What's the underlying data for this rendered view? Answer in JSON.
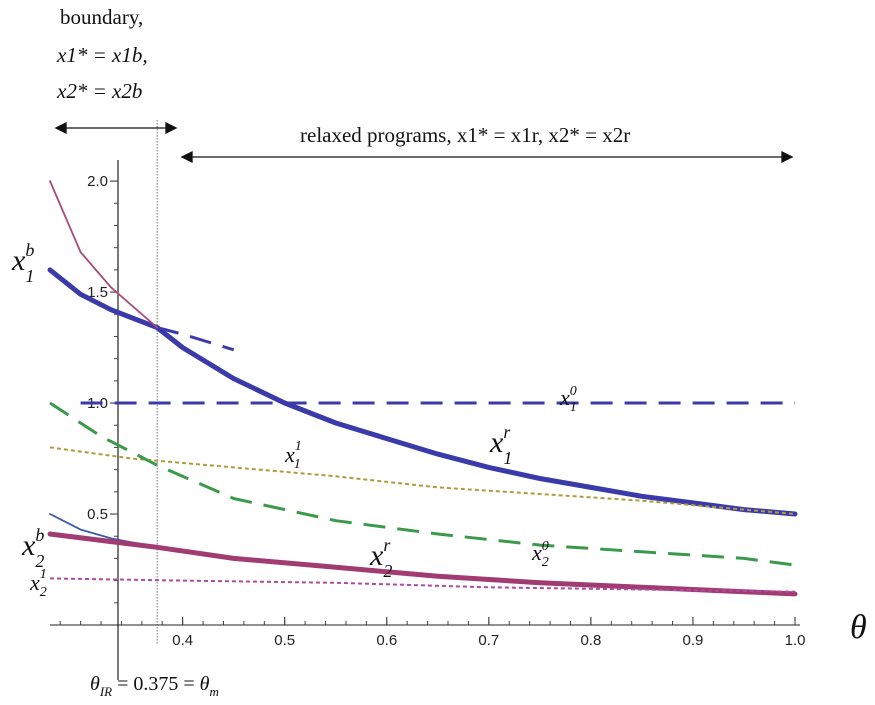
{
  "chart_data": {
    "type": "line",
    "x_axis": {
      "symbol": "θ",
      "ticks": [
        "0.4",
        "0.5",
        "0.6",
        "0.7",
        "0.8",
        "0.9",
        "1.0"
      ],
      "xlim": [
        0.27,
        1.0
      ]
    },
    "y_axis": {
      "ticks": [
        "0.5",
        "1.0",
        "1.5",
        "2.0"
      ],
      "ylim": [
        0.0,
        2.05
      ]
    },
    "reference_x": 0.375,
    "annotations": {
      "boundary_title": "boundary,",
      "boundary_x1": "x1* = x1b,",
      "boundary_x2": "x2* = x2b",
      "relaxed": "relaxed programs, x1* = x1r, x2* = x2r",
      "theta_ir": "θIR = 0.375 = θm"
    },
    "series": [
      {
        "name": "x1r",
        "color": "#3a3aaa",
        "style": "thick",
        "x": [
          0.375,
          0.4,
          0.45,
          0.5,
          0.55,
          0.6,
          0.65,
          0.7,
          0.75,
          0.8,
          0.85,
          0.9,
          0.95,
          1.0
        ],
        "y": [
          1.34,
          1.25,
          1.11,
          1.0,
          0.91,
          0.84,
          0.77,
          0.71,
          0.66,
          0.62,
          0.58,
          0.55,
          0.52,
          0.5
        ]
      },
      {
        "name": "x1b",
        "color": "#3a3aaa",
        "style": "thick",
        "x": [
          0.27,
          0.3,
          0.33,
          0.375
        ],
        "y": [
          1.6,
          1.49,
          1.42,
          1.34
        ]
      },
      {
        "name": "x1r-extension",
        "color": "#3a3aaa",
        "style": "dash",
        "x": [
          0.375,
          0.4,
          0.45
        ],
        "y": [
          1.34,
          1.31,
          1.24
        ]
      },
      {
        "name": "x1b-upper",
        "color": "#aa4a7a",
        "style": "thin",
        "x": [
          0.27,
          0.3,
          0.33,
          0.375
        ],
        "y": [
          2.0,
          1.68,
          1.52,
          1.34
        ]
      },
      {
        "name": "x10",
        "color": "#3a3aaa",
        "style": "dash",
        "x": [
          0.3,
          1.0
        ],
        "y": [
          1.0,
          1.0
        ]
      },
      {
        "name": "x11",
        "color": "#b09a3c",
        "style": "dot",
        "x": [
          0.27,
          0.35,
          0.45,
          0.55,
          0.65,
          0.75,
          0.85,
          0.95,
          1.0
        ],
        "y": [
          0.8,
          0.75,
          0.71,
          0.67,
          0.62,
          0.59,
          0.56,
          0.52,
          0.5
        ]
      },
      {
        "name": "x20",
        "color": "#3a9a4a",
        "style": "dash",
        "x": [
          0.27,
          0.32,
          0.375,
          0.45,
          0.55,
          0.65,
          0.75,
          0.85,
          0.95,
          1.0
        ],
        "y": [
          1.0,
          0.85,
          0.72,
          0.57,
          0.47,
          0.41,
          0.36,
          0.33,
          0.3,
          0.27
        ]
      },
      {
        "name": "x2b",
        "color": "#3a5aaa",
        "style": "thin",
        "x": [
          0.27,
          0.3,
          0.33,
          0.375
        ],
        "y": [
          0.5,
          0.43,
          0.39,
          0.35
        ]
      },
      {
        "name": "x2r",
        "color": "#a03c72",
        "style": "thick",
        "x": [
          0.27,
          0.375,
          0.45,
          0.55,
          0.65,
          0.75,
          0.85,
          0.95,
          1.0
        ],
        "y": [
          0.41,
          0.35,
          0.3,
          0.26,
          0.22,
          0.19,
          0.17,
          0.15,
          0.14
        ]
      },
      {
        "name": "x21",
        "color": "#b04aa0",
        "style": "dot",
        "x": [
          0.27,
          0.4,
          0.55,
          0.7,
          0.85,
          1.0
        ],
        "y": [
          0.21,
          0.2,
          0.19,
          0.17,
          0.16,
          0.15
        ]
      }
    ]
  }
}
